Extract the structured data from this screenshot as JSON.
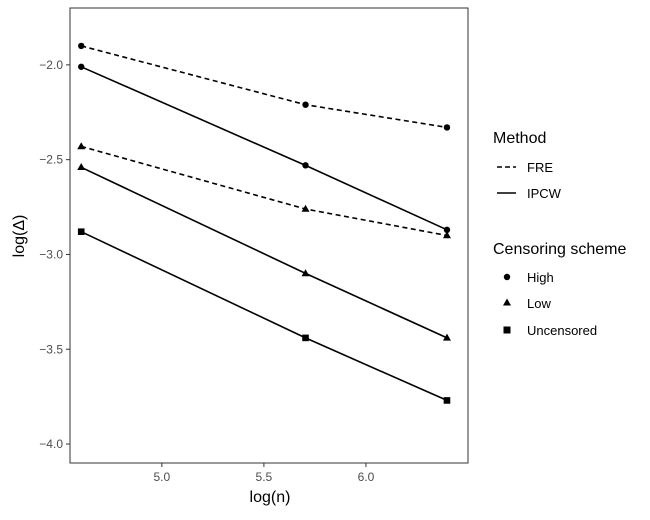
{
  "chart_data": {
    "type": "line",
    "xlabel": "log(n)",
    "ylabel": "log(Δ)",
    "xlim": [
      4.55,
      6.5
    ],
    "ylim": [
      -4.1,
      -1.7
    ],
    "x_ticks": [
      {
        "value": 5.0,
        "label": "5.0"
      },
      {
        "value": 5.5,
        "label": "5.5"
      },
      {
        "value": 6.0,
        "label": "6.0"
      }
    ],
    "y_ticks": [
      {
        "value": -2.0,
        "label": "−2.0"
      },
      {
        "value": -2.5,
        "label": "−2.5"
      },
      {
        "value": -3.0,
        "label": "−3.0"
      },
      {
        "value": -3.5,
        "label": "−3.5"
      },
      {
        "value": -4.0,
        "label": "−4.0"
      }
    ],
    "x": [
      4.605,
      5.704,
      6.397
    ],
    "series": [
      {
        "method": "FRE",
        "censoring": "High",
        "values": [
          -1.9,
          -2.21,
          -2.33
        ]
      },
      {
        "method": "FRE",
        "censoring": "Low",
        "values": [
          -2.43,
          -2.76,
          -2.9
        ]
      },
      {
        "method": "IPCW",
        "censoring": "High",
        "values": [
          -2.01,
          -2.53,
          -2.87
        ]
      },
      {
        "method": "IPCW",
        "censoring": "Low",
        "values": [
          -2.54,
          -3.1,
          -3.44
        ]
      },
      {
        "method": "IPCW",
        "censoring": "Uncensored",
        "values": [
          -2.88,
          -3.44,
          -3.77
        ]
      }
    ],
    "grid": false,
    "legend_placement": "right",
    "legend": {
      "method_title": "Method",
      "method_items": [
        {
          "label": "FRE",
          "linetype": "dashed"
        },
        {
          "label": "IPCW",
          "linetype": "solid"
        }
      ],
      "censoring_title": "Censoring scheme",
      "censoring_items": [
        {
          "label": "High",
          "shape": "circle"
        },
        {
          "label": "Low",
          "shape": "triangle"
        },
        {
          "label": "Uncensored",
          "shape": "square"
        }
      ]
    },
    "colors": {
      "line": "#000000",
      "axis": "#333333",
      "tick_text": "#4d4d4d"
    }
  }
}
